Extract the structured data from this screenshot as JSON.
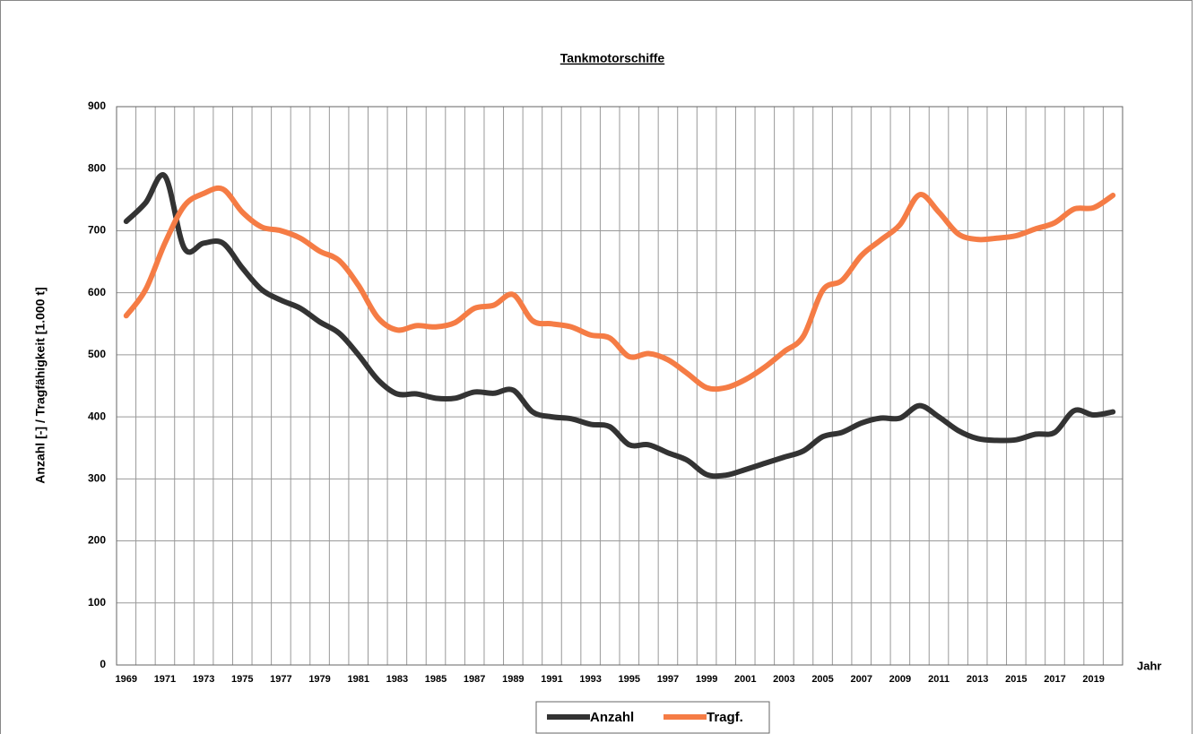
{
  "chart_data": {
    "type": "line",
    "title": "Tankmotorschiffe",
    "y_label": "Anzahl [-] / Tragfähigkeit [1.000 t]",
    "x_label": "Jahr",
    "categories": [
      "1969",
      null,
      "1971",
      null,
      "1973",
      null,
      "1975",
      null,
      "1977",
      null,
      "1979",
      null,
      "1981",
      null,
      "1983",
      null,
      "1985",
      null,
      "1987",
      null,
      "1989",
      null,
      "1991",
      null,
      "1993",
      null,
      "1995",
      null,
      "1997",
      null,
      "1999",
      null,
      "2001",
      null,
      "2003",
      null,
      "2005",
      null,
      "2007",
      null,
      "2009",
      null,
      "2011",
      null,
      "2013",
      null,
      "2015",
      null,
      "2017",
      null,
      "2019",
      null
    ],
    "series": [
      {
        "name": "Anzahl",
        "color": "#333333",
        "values": [
          715,
          745,
          788,
          672,
          680,
          680,
          640,
          605,
          588,
          575,
          553,
          535,
          500,
          460,
          437,
          437,
          430,
          430,
          440,
          438,
          443,
          408,
          400,
          397,
          388,
          384,
          355,
          355,
          342,
          330,
          307,
          306,
          315,
          325,
          335,
          345,
          368,
          375,
          390,
          398,
          398,
          418,
          400,
          378,
          365,
          362,
          363,
          372,
          375,
          410,
          403,
          408
        ]
      },
      {
        "name": "Tragf.",
        "color": "#f57c45",
        "values": [
          563,
          605,
          680,
          740,
          760,
          767,
          730,
          706,
          700,
          688,
          667,
          652,
          612,
          560,
          540,
          547,
          545,
          552,
          575,
          580,
          597,
          555,
          550,
          545,
          532,
          527,
          497,
          502,
          492,
          470,
          447,
          447,
          460,
          480,
          505,
          530,
          604,
          620,
          660,
          685,
          710,
          758,
          730,
          695,
          686,
          688,
          692,
          703,
          713,
          735,
          737,
          757
        ]
      }
    ],
    "ylim": [
      0,
      900
    ],
    "yticks": [
      0,
      100,
      200,
      300,
      400,
      500,
      600,
      700,
      800,
      900
    ],
    "grid": true,
    "legend": "bottom"
  }
}
